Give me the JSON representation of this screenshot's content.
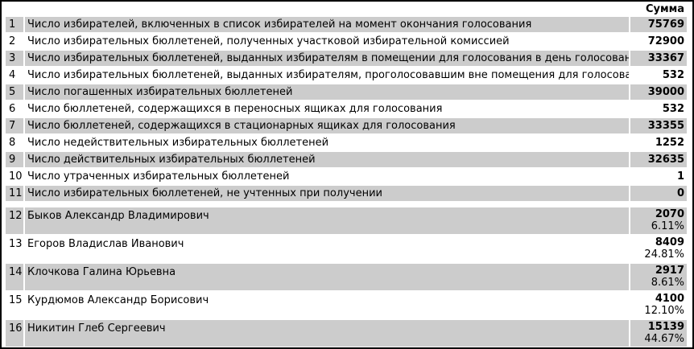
{
  "header": {
    "sum_label": "Сумма"
  },
  "colors": {
    "shaded_row": "#cccccc",
    "plain_row": "#ffffff",
    "frame_border": "#000000",
    "text": "#000000"
  },
  "stats_rows": [
    {
      "num": "1",
      "label": "Число избирателей, включенных в список избирателей на момент окончания голосования",
      "value": "75769"
    },
    {
      "num": "2",
      "label": "Число избирательных бюллетеней, полученных участковой избирательной комиссией",
      "value": "72900"
    },
    {
      "num": "3",
      "label": "Число избирательных бюллетеней, выданных избирателям в помещении для голосования в день голосования",
      "value": "33367"
    },
    {
      "num": "4",
      "label": "Число избирательных бюллетеней, выданных избирателям, проголосовавшим вне помещения для голосования в день голосования",
      "value": "532"
    },
    {
      "num": "5",
      "label": "Число погашенных избирательных бюллетеней",
      "value": "39000"
    },
    {
      "num": "6",
      "label": "Число бюллетеней, содержащихся в переносных ящиках для голосования",
      "value": "532"
    },
    {
      "num": "7",
      "label": "Число бюллетеней, содержащихся в стационарных ящиках для голосования",
      "value": "33355"
    },
    {
      "num": "8",
      "label": "Число недействительных избирательных бюллетеней",
      "value": "1252"
    },
    {
      "num": "9",
      "label": "Число действительных избирательных бюллетеней",
      "value": "32635"
    },
    {
      "num": "10",
      "label": "Число утраченных избирательных бюллетеней",
      "value": "1"
    },
    {
      "num": "11",
      "label": "Число избирательных бюллетеней, не учтенных при получении",
      "value": "0"
    }
  ],
  "candidate_rows": [
    {
      "num": "12",
      "label": "Быков Александр Владимирович",
      "votes": "2070",
      "percent": "6.11%"
    },
    {
      "num": "13",
      "label": "Егоров Владислав Иванович",
      "votes": "8409",
      "percent": "24.81%"
    },
    {
      "num": "14",
      "label": "Клочкова Галина Юрьевна",
      "votes": "2917",
      "percent": "8.61%"
    },
    {
      "num": "15",
      "label": "Курдюмов Александр Борисович",
      "votes": "4100",
      "percent": "12.10%"
    },
    {
      "num": "16",
      "label": "Никитин Глеб Сергеевич",
      "votes": "15139",
      "percent": "44.67%"
    }
  ]
}
